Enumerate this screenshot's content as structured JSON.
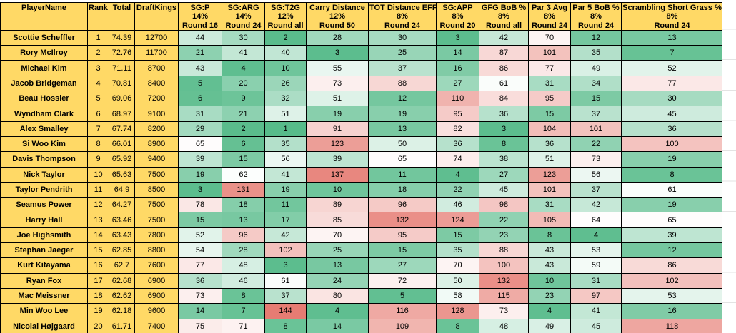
{
  "table": {
    "header": {
      "player": "PlayerName",
      "rank": "Rank",
      "total": "Total",
      "draftkings": "DraftKings",
      "stats": [
        {
          "label": "SG:P",
          "weight": "14%",
          "round": "Round 16"
        },
        {
          "label": "SG:ARG",
          "weight": "14%",
          "round": "Round 24"
        },
        {
          "label": "SG:T2G",
          "weight": "12%",
          "round": "Round all"
        },
        {
          "label": "Carry Distance",
          "weight": "12%",
          "round": "Round 50"
        },
        {
          "label": "TOT Distance EFF",
          "weight": "8%",
          "round": "Round 24"
        },
        {
          "label": "SG:APP",
          "weight": "8%",
          "round": "Round 20"
        },
        {
          "label": "GFG BoB %",
          "weight": "8%",
          "round": "Round all"
        },
        {
          "label": "Par 3 Avg",
          "weight": "8%",
          "round": "Round 24"
        },
        {
          "label": "Par 5 BoB %",
          "weight": "8%",
          "round": "Round 24"
        },
        {
          "label": "Scrambling Short Grass %",
          "weight": "8%",
          "round": "Round 24"
        }
      ]
    },
    "rows": [
      {
        "player": "Scottie Scheffler",
        "rank": "1",
        "total": "74.39",
        "draftkings": "12700",
        "stats": [
          44,
          30,
          2,
          28,
          30,
          3,
          42,
          70,
          12,
          13
        ]
      },
      {
        "player": "Rory McIlroy",
        "rank": "2",
        "total": "72.76",
        "draftkings": "11700",
        "stats": [
          21,
          41,
          40,
          3,
          25,
          14,
          87,
          101,
          35,
          7
        ]
      },
      {
        "player": "Michael Kim",
        "rank": "3",
        "total": "71.11",
        "draftkings": "8700",
        "stats": [
          43,
          4,
          10,
          55,
          37,
          16,
          86,
          77,
          49,
          52
        ]
      },
      {
        "player": "Jacob Bridgeman",
        "rank": "4",
        "total": "70.81",
        "draftkings": "8400",
        "stats": [
          5,
          20,
          26,
          73,
          88,
          27,
          61,
          31,
          34,
          77
        ]
      },
      {
        "player": "Beau Hossler",
        "rank": "5",
        "total": "69.06",
        "draftkings": "7200",
        "stats": [
          6,
          9,
          32,
          51,
          12,
          110,
          84,
          95,
          15,
          30
        ]
      },
      {
        "player": "Wyndham Clark",
        "rank": "6",
        "total": "68.97",
        "draftkings": "9100",
        "stats": [
          31,
          21,
          51,
          19,
          19,
          95,
          36,
          15,
          37,
          45
        ]
      },
      {
        "player": "Alex Smalley",
        "rank": "7",
        "total": "67.74",
        "draftkings": "8200",
        "stats": [
          29,
          2,
          1,
          91,
          13,
          82,
          3,
          104,
          101,
          36
        ]
      },
      {
        "player": "Si Woo Kim",
        "rank": "8",
        "total": "66.01",
        "draftkings": "8900",
        "stats": [
          65,
          6,
          35,
          123,
          50,
          36,
          8,
          36,
          22,
          100
        ]
      },
      {
        "player": "Davis Thompson",
        "rank": "9",
        "total": "65.92",
        "draftkings": "9400",
        "stats": [
          39,
          15,
          56,
          39,
          65,
          74,
          38,
          51,
          73,
          19
        ]
      },
      {
        "player": "Nick Taylor",
        "rank": "10",
        "total": "65.63",
        "draftkings": "7500",
        "stats": [
          19,
          62,
          41,
          137,
          11,
          4,
          27,
          123,
          56,
          8
        ]
      },
      {
        "player": "Taylor Pendrith",
        "rank": "11",
        "total": "64.9",
        "draftkings": "8500",
        "stats": [
          3,
          131,
          19,
          10,
          18,
          22,
          45,
          101,
          37,
          61
        ]
      },
      {
        "player": "Seamus Power",
        "rank": "12",
        "total": "64.27",
        "draftkings": "7500",
        "stats": [
          78,
          18,
          11,
          89,
          96,
          46,
          98,
          31,
          42,
          19
        ]
      },
      {
        "player": "Harry Hall",
        "rank": "13",
        "total": "63.46",
        "draftkings": "7500",
        "stats": [
          15,
          13,
          17,
          85,
          132,
          124,
          22,
          105,
          64,
          65
        ]
      },
      {
        "player": "Joe Highsmith",
        "rank": "14",
        "total": "63.43",
        "draftkings": "7800",
        "stats": [
          52,
          96,
          42,
          70,
          95,
          15,
          23,
          8,
          4,
          39
        ]
      },
      {
        "player": "Stephan Jaeger",
        "rank": "15",
        "total": "62.85",
        "draftkings": "8800",
        "stats": [
          54,
          28,
          102,
          25,
          15,
          35,
          88,
          43,
          53,
          12
        ]
      },
      {
        "player": "Kurt Kitayama",
        "rank": "16",
        "total": "62.7",
        "draftkings": "7600",
        "stats": [
          77,
          48,
          3,
          13,
          27,
          70,
          100,
          43,
          59,
          86
        ]
      },
      {
        "player": "Ryan Fox",
        "rank": "17",
        "total": "62.68",
        "draftkings": "6900",
        "stats": [
          36,
          46,
          61,
          24,
          72,
          50,
          132,
          10,
          31,
          102
        ]
      },
      {
        "player": "Mac Meissner",
        "rank": "18",
        "total": "62.62",
        "draftkings": "6900",
        "stats": [
          73,
          8,
          37,
          80,
          5,
          58,
          115,
          23,
          97,
          53
        ]
      },
      {
        "player": "Min Woo Lee",
        "rank": "19",
        "total": "62.18",
        "draftkings": "9600",
        "stats": [
          14,
          7,
          144,
          4,
          116,
          128,
          73,
          4,
          41,
          16
        ]
      },
      {
        "player": "Nicolai Højgaard",
        "rank": "20",
        "total": "61.71",
        "draftkings": "7400",
        "stats": [
          75,
          71,
          8,
          14,
          109,
          8,
          48,
          49,
          45,
          118
        ]
      }
    ],
    "colors": {
      "header_bg": "#FFD966",
      "scale_min_color": "#57BB8A",
      "scale_mid_color": "#FFFFFF",
      "scale_max_color": "#E67C73",
      "scale_min": 1,
      "scale_mid": 63,
      "scale_max": 144
    }
  }
}
